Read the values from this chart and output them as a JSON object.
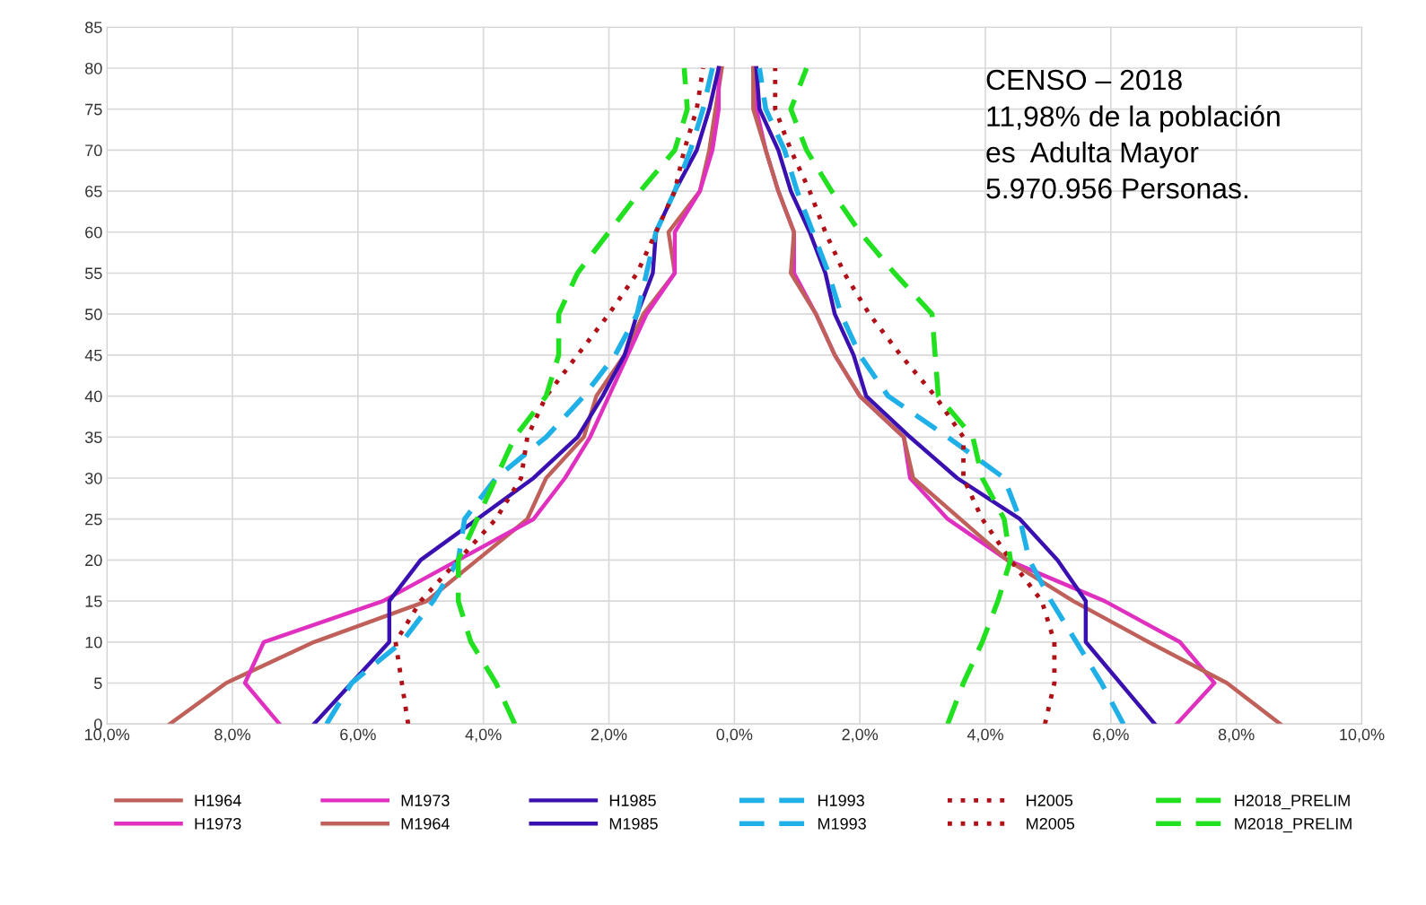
{
  "chart_data": {
    "type": "line",
    "annotations": [
      "CENSO – 2018\n11,98% de la población\nes  Adulta Mayor\n5.970.956 Personas."
    ],
    "xlim": [
      -10,
      10
    ],
    "xticks": [
      {
        "value": -10,
        "label": "10,0%"
      },
      {
        "value": -8,
        "label": "8,0%"
      },
      {
        "value": -6,
        "label": "6,0%"
      },
      {
        "value": -4,
        "label": "4,0%"
      },
      {
        "value": -2,
        "label": "2,0%"
      },
      {
        "value": 0,
        "label": "0,0%"
      },
      {
        "value": 2,
        "label": "2,0%"
      },
      {
        "value": 4,
        "label": "4,0%"
      },
      {
        "value": 6,
        "label": "6,0%"
      },
      {
        "value": 8,
        "label": "8,0%"
      },
      {
        "value": 10,
        "label": "10,0%"
      }
    ],
    "ylim": [
      0,
      85
    ],
    "yticks": [
      0,
      5,
      10,
      15,
      20,
      25,
      30,
      35,
      40,
      45,
      50,
      55,
      60,
      65,
      70,
      75,
      80,
      85
    ],
    "grid": true,
    "legend": "bottom",
    "series": [
      {
        "name": "H1964",
        "color": "#c0605a",
        "line_style": "solid",
        "x": [
          -9.0,
          -8.1,
          -6.7,
          -4.9,
          -4.1,
          -3.3,
          -3.0,
          -2.4,
          -2.2,
          -1.75,
          -1.45,
          -0.95,
          -1.05,
          -0.55,
          -0.4,
          -0.3,
          -0.2
        ],
        "values": [
          0,
          5,
          10,
          15,
          20,
          25,
          30,
          35,
          40,
          45,
          50,
          55,
          60,
          65,
          70,
          75,
          80
        ]
      },
      {
        "name": "H1973",
        "color": "#e030c0",
        "line_style": "solid",
        "x": [
          -7.25,
          -7.8,
          -7.5,
          -5.6,
          -4.4,
          -3.2,
          -2.7,
          -2.3,
          -2.0,
          -1.7,
          -1.4,
          -0.95,
          -0.95,
          -0.55,
          -0.35,
          -0.25,
          -0.25
        ],
        "values": [
          0,
          5,
          10,
          15,
          20,
          25,
          30,
          35,
          40,
          45,
          50,
          55,
          60,
          65,
          70,
          75,
          80
        ]
      },
      {
        "name": "M1973",
        "color": "#e030c0",
        "line_style": "solid",
        "x": [
          7.05,
          7.65,
          7.1,
          5.9,
          4.35,
          3.4,
          2.8,
          2.7,
          2.0,
          1.6,
          1.3,
          0.95,
          0.95,
          0.7,
          0.5,
          0.35,
          0.3
        ],
        "values": [
          0,
          5,
          10,
          15,
          20,
          25,
          30,
          35,
          40,
          45,
          50,
          55,
          60,
          65,
          70,
          75,
          80
        ]
      },
      {
        "name": "M1964",
        "color": "#c0605a",
        "line_style": "solid",
        "x": [
          8.7,
          7.85,
          6.6,
          5.4,
          4.35,
          3.6,
          2.85,
          2.7,
          2.0,
          1.6,
          1.3,
          0.9,
          0.95,
          0.7,
          0.5,
          0.3,
          0.3
        ],
        "values": [
          0,
          5,
          10,
          15,
          20,
          25,
          30,
          35,
          40,
          45,
          50,
          55,
          60,
          65,
          70,
          75,
          80
        ]
      },
      {
        "name": "H1985",
        "color": "#3a10b0",
        "line_style": "solid",
        "x": [
          -6.7,
          -6.1,
          -5.5,
          -5.5,
          -5.0,
          -4.1,
          -3.2,
          -2.5,
          -2.1,
          -1.75,
          -1.55,
          -1.3,
          -1.25,
          -0.95,
          -0.6,
          -0.4,
          -0.25
        ],
        "values": [
          0,
          5,
          10,
          15,
          20,
          25,
          30,
          35,
          40,
          45,
          50,
          55,
          60,
          65,
          70,
          75,
          80
        ]
      },
      {
        "name": "M1985",
        "color": "#3a10b0",
        "line_style": "solid",
        "x": [
          6.7,
          6.15,
          5.6,
          5.6,
          5.15,
          4.55,
          3.55,
          2.8,
          2.1,
          1.9,
          1.6,
          1.45,
          1.2,
          0.9,
          0.7,
          0.4,
          0.35
        ],
        "values": [
          0,
          5,
          10,
          15,
          20,
          25,
          30,
          35,
          40,
          45,
          50,
          55,
          60,
          65,
          70,
          75,
          80
        ]
      },
      {
        "name": "H1993",
        "color": "#20b0e8",
        "line_style": "dashed",
        "x": [
          -6.5,
          -6.1,
          -5.3,
          -4.8,
          -4.4,
          -4.3,
          -3.8,
          -3.0,
          -2.4,
          -1.9,
          -1.55,
          -1.4,
          -1.25,
          -0.95,
          -0.7,
          -0.5,
          -0.35
        ],
        "values": [
          0,
          5,
          10,
          15,
          20,
          25,
          30,
          35,
          40,
          45,
          50,
          55,
          60,
          65,
          70,
          75,
          80
        ]
      },
      {
        "name": "M1993",
        "color": "#20b0e8",
        "line_style": "dashed",
        "x": [
          6.2,
          5.85,
          5.45,
          5.05,
          4.7,
          4.55,
          4.3,
          3.4,
          2.45,
          2.0,
          1.7,
          1.5,
          1.25,
          1.0,
          0.8,
          0.5,
          0.4
        ],
        "values": [
          0,
          5,
          10,
          15,
          20,
          25,
          30,
          35,
          40,
          45,
          50,
          55,
          60,
          65,
          70,
          75,
          80
        ]
      },
      {
        "name": "H2005",
        "color": "#b01018",
        "line_style": "dotted",
        "x": [
          -5.2,
          -5.3,
          -5.4,
          -5.0,
          -4.4,
          -3.8,
          -3.4,
          -3.3,
          -3.0,
          -2.5,
          -2.0,
          -1.55,
          -1.25,
          -0.95,
          -0.8,
          -0.6,
          -0.5
        ],
        "values": [
          0,
          5,
          10,
          15,
          20,
          25,
          30,
          35,
          40,
          45,
          50,
          55,
          60,
          65,
          70,
          75,
          80
        ]
      },
      {
        "name": "M2005",
        "color": "#b01018",
        "line_style": "dotted",
        "x": [
          4.95,
          5.1,
          5.1,
          4.9,
          4.4,
          3.95,
          3.65,
          3.65,
          3.2,
          2.65,
          2.15,
          1.75,
          1.45,
          1.2,
          0.9,
          0.65,
          0.65
        ],
        "values": [
          0,
          5,
          10,
          15,
          20,
          25,
          30,
          35,
          40,
          45,
          50,
          55,
          60,
          65,
          70,
          75,
          80
        ]
      },
      {
        "name": "H2018_PRELIM",
        "color": "#20e020",
        "line_style": "dashed",
        "x": [
          -3.5,
          -3.8,
          -4.2,
          -4.4,
          -4.4,
          -4.1,
          -3.8,
          -3.5,
          -3.0,
          -2.8,
          -2.8,
          -2.5,
          -2.0,
          -1.5,
          -0.95,
          -0.75,
          -0.8
        ],
        "values": [
          0,
          5,
          10,
          15,
          20,
          25,
          30,
          35,
          40,
          45,
          50,
          55,
          60,
          65,
          70,
          75,
          80
        ]
      },
      {
        "name": "M2018_PRELIM",
        "color": "#20e020",
        "line_style": "dashed",
        "x": [
          3.4,
          3.65,
          3.95,
          4.2,
          4.4,
          4.3,
          3.95,
          3.8,
          3.25,
          3.2,
          3.15,
          2.55,
          2.0,
          1.55,
          1.15,
          0.9,
          1.15
        ],
        "values": [
          0,
          5,
          10,
          15,
          20,
          25,
          30,
          35,
          40,
          45,
          50,
          55,
          60,
          65,
          70,
          75,
          80
        ]
      }
    ]
  }
}
